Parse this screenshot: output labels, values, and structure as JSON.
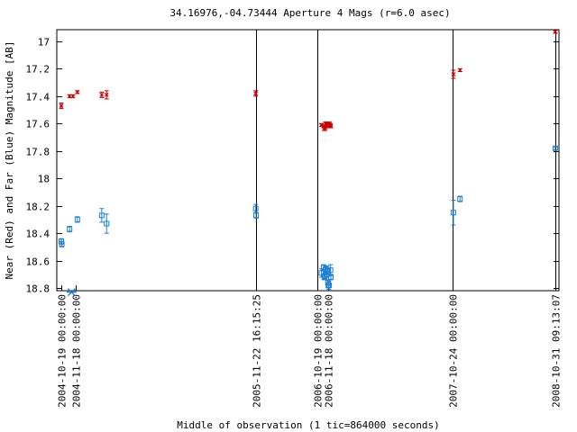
{
  "chart_data": {
    "type": "scatter",
    "title": "34.16976,-04.73444   Aperture 4 Mags (r=6.0 asec)",
    "xlabel": "Middle of observation (1 tic=864000 seconds)",
    "ylabel": "Near (Red) and Far (Blue) Magnitude [AB]",
    "ylim": [
      16.93,
      18.83
    ],
    "y_inverted": true,
    "y_ticks": [
      17,
      17.2,
      17.4,
      17.6,
      17.8,
      18,
      18.2,
      18.4,
      18.6,
      18.8
    ],
    "y_tick_labels": [
      "17",
      "17.2",
      "17.4",
      "17.6",
      "17.8",
      "18",
      "18.2",
      "18.4",
      "18.6",
      "18.8"
    ],
    "x_tick_labels": [
      "2004-10-19 00:00:00",
      "2004-11-18 00:00:00",
      "2005-11-22 16:15:25",
      "2006-10-19 00:00:00",
      "2006-11-18 00:00:00",
      "2007-10-24 00:00:00",
      "2008-10-31 09:13:07"
    ],
    "segment_dividers": [
      "2005-11-22 16:15:25",
      "2006-10-19 00:00:00",
      "2007-10-24 00:00:00",
      "2008-10-31 09:13:07"
    ],
    "grid": false,
    "colors": {
      "near": "#cc0000",
      "far": "#1a7fd4",
      "marker": "#1a7fd4"
    },
    "series": [
      {
        "name": "Near (Red)",
        "marker": "x",
        "points": [
          {
            "x": "2004-10-19",
            "y": 17.47,
            "err": 0.02
          },
          {
            "x": "2004-11-05",
            "y": 17.4,
            "err": 0.01
          },
          {
            "x": "2004-11-12",
            "y": 17.4,
            "err": 0.01
          },
          {
            "x": "2004-11-21",
            "y": 17.37,
            "err": 0.01
          },
          {
            "x": "2005-01-10",
            "y": 17.39,
            "err": 0.02
          },
          {
            "x": "2005-01-20",
            "y": 17.39,
            "err": 0.03
          },
          {
            "x": "2005-11-22",
            "y": 17.38,
            "err": 0.02
          },
          {
            "x": "2006-10-30",
            "y": 17.61,
            "err": 0.01
          },
          {
            "x": "2006-11-05",
            "y": 17.62,
            "err": 0.01
          },
          {
            "x": "2006-11-07",
            "y": 17.64,
            "err": 0.01
          },
          {
            "x": "2006-11-09",
            "y": 17.63,
            "err": 0.02
          },
          {
            "x": "2006-11-10",
            "y": 17.6,
            "err": 0.01
          },
          {
            "x": "2006-11-14",
            "y": 17.6,
            "err": 0.01
          },
          {
            "x": "2006-11-15",
            "y": 17.61,
            "err": 0.01
          },
          {
            "x": "2006-11-16",
            "y": 17.62,
            "err": 0.01
          },
          {
            "x": "2006-11-17",
            "y": 17.6,
            "err": 0.01
          },
          {
            "x": "2006-11-19",
            "y": 17.62,
            "err": 0.01
          },
          {
            "x": "2006-11-21",
            "y": 17.6,
            "err": 0.01
          },
          {
            "x": "2006-11-24",
            "y": 17.61,
            "err": 0.01
          },
          {
            "x": "2006-11-25",
            "y": 17.62,
            "err": 0.01
          },
          {
            "x": "2007-10-27",
            "y": 17.24,
            "err": 0.03
          },
          {
            "x": "2007-11-20",
            "y": 17.21,
            "err": 0.01
          },
          {
            "x": "2008-10-31",
            "y": 16.93,
            "err": 0.01
          }
        ]
      },
      {
        "name": "Far (Blue)",
        "marker": "square",
        "points": [
          {
            "x": "2004-10-19",
            "y": 18.46,
            "err": 0.02
          },
          {
            "x": "2004-10-20",
            "y": 18.48,
            "err": 0.02
          },
          {
            "x": "2004-11-05",
            "y": 18.37,
            "err": 0.02
          },
          {
            "x": "2004-11-21",
            "y": 18.3,
            "err": 0.02
          },
          {
            "x": "2005-01-10",
            "y": 18.27,
            "err": 0.05
          },
          {
            "x": "2005-01-20",
            "y": 18.33,
            "err": 0.07
          },
          {
            "x": "2005-11-22",
            "y": 18.22,
            "err": 0.03
          },
          {
            "x": "2005-11-23",
            "y": 18.27,
            "err": 0.02
          },
          {
            "x": "2006-10-30",
            "y": 18.69,
            "err": 0.03
          },
          {
            "x": "2006-11-05",
            "y": 18.65,
            "err": 0.02
          },
          {
            "x": "2006-11-07",
            "y": 18.72,
            "err": 0.02
          },
          {
            "x": "2006-11-09",
            "y": 18.71,
            "err": 0.02
          },
          {
            "x": "2006-11-10",
            "y": 18.67,
            "err": 0.02
          },
          {
            "x": "2006-11-11",
            "y": 18.66,
            "err": 0.02
          },
          {
            "x": "2006-11-14",
            "y": 18.7,
            "err": 0.02
          },
          {
            "x": "2006-11-15",
            "y": 18.67,
            "err": 0.03
          },
          {
            "x": "2006-11-16",
            "y": 18.68,
            "err": 0.02
          },
          {
            "x": "2006-11-17",
            "y": 18.76,
            "err": 0.02
          },
          {
            "x": "2006-11-18",
            "y": 18.78,
            "err": 0.02
          },
          {
            "x": "2006-11-20",
            "y": 18.78,
            "err": 0.03
          },
          {
            "x": "2006-11-24",
            "y": 18.67,
            "err": 0.04
          },
          {
            "x": "2006-11-25",
            "y": 18.72,
            "err": 0.02
          },
          {
            "x": "2007-10-27",
            "y": 18.25,
            "err": 0.09
          },
          {
            "x": "2007-11-20",
            "y": 18.15,
            "err": 0.02
          },
          {
            "x": "2008-10-31",
            "y": 17.78,
            "err": 0.01
          }
        ]
      }
    ],
    "extra_markers": [
      {
        "marker": "asterisk",
        "x": "2004-11-09",
        "y": 18.83
      }
    ]
  }
}
